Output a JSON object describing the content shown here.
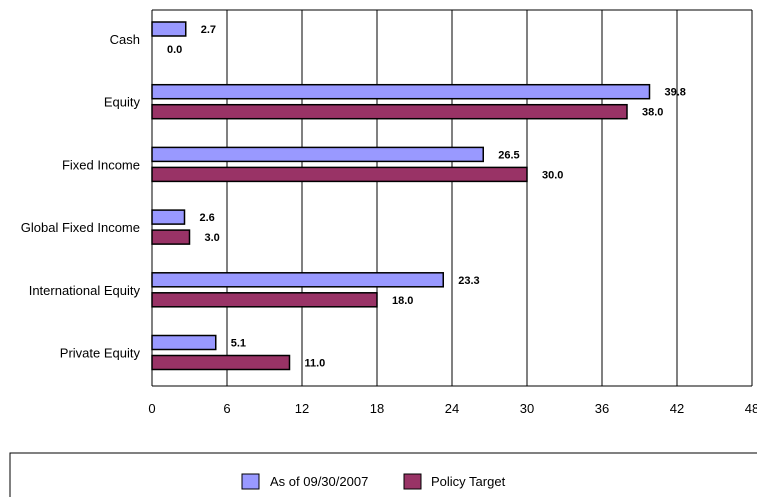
{
  "chart_data": {
    "type": "bar",
    "orientation": "horizontal",
    "categories": [
      "Cash",
      "Equity",
      "Fixed Income",
      "Global Fixed Income",
      "International Equity",
      "Private Equity"
    ],
    "series": [
      {
        "name": "As of 09/30/2007",
        "values": [
          2.7,
          39.8,
          26.5,
          2.6,
          23.3,
          5.1
        ],
        "color": "#9999ff"
      },
      {
        "name": "Policy Target",
        "values": [
          0.0,
          38.0,
          30.0,
          3.0,
          18.0,
          11.0
        ],
        "color": "#993366"
      }
    ],
    "xlim": [
      0,
      48
    ],
    "xticks": [
      "0",
      "6",
      "12",
      "18",
      "24",
      "30",
      "36",
      "42",
      "48"
    ],
    "grid": true,
    "legend_position": "bottom",
    "title": "",
    "xlabel": "",
    "ylabel": ""
  }
}
